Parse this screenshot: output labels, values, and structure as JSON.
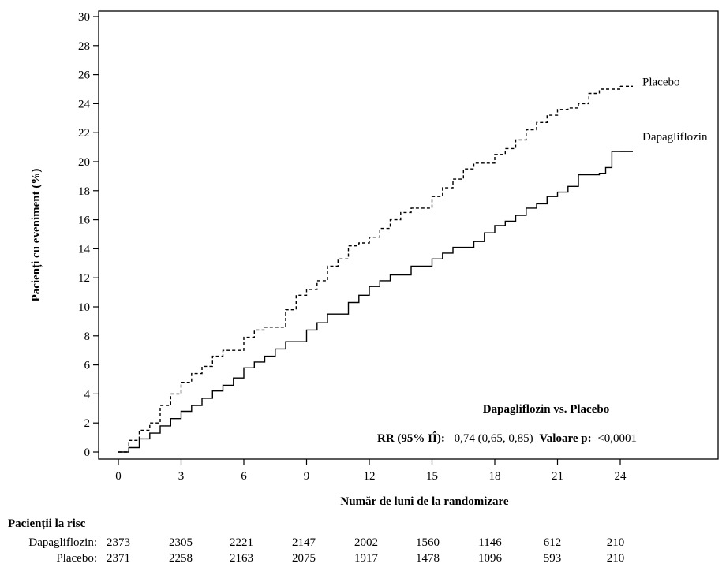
{
  "chart_data": {
    "type": "line",
    "xlabel": "Număr de luni de la randomizare",
    "ylabel": "Pacienți cu eveniment (%)",
    "xlim": [
      -1,
      31
    ],
    "ylim": [
      0,
      30
    ],
    "x_ticks": [
      0,
      3,
      6,
      9,
      12,
      15,
      18,
      21,
      24
    ],
    "y_ticks": [
      0,
      2,
      4,
      6,
      8,
      10,
      12,
      14,
      16,
      18,
      20,
      22,
      24,
      26,
      28,
      30
    ],
    "grid": false,
    "series": [
      {
        "name": "Placebo",
        "style": "dashed",
        "color": "#000000",
        "points": [
          [
            0,
            0
          ],
          [
            0.5,
            0.8
          ],
          [
            1,
            1.5
          ],
          [
            1.5,
            2
          ],
          [
            2,
            3.2
          ],
          [
            2.5,
            4
          ],
          [
            3,
            4.8
          ],
          [
            3.5,
            5.4
          ],
          [
            4,
            5.9
          ],
          [
            4.5,
            6.6
          ],
          [
            5,
            7
          ],
          [
            6,
            7.9
          ],
          [
            6.5,
            8.4
          ],
          [
            7,
            8.6
          ],
          [
            8,
            9.8
          ],
          [
            8.5,
            10.8
          ],
          [
            9,
            11.2
          ],
          [
            9.5,
            11.8
          ],
          [
            10,
            12.8
          ],
          [
            10.5,
            13.3
          ],
          [
            11,
            14.2
          ],
          [
            11.5,
            14.4
          ],
          [
            12,
            14.8
          ],
          [
            12.5,
            15.4
          ],
          [
            13,
            16
          ],
          [
            13.5,
            16.5
          ],
          [
            14,
            16.8
          ],
          [
            15,
            17.6
          ],
          [
            15.5,
            18.2
          ],
          [
            16,
            18.8
          ],
          [
            16.5,
            19.5
          ],
          [
            17,
            19.9
          ],
          [
            18,
            20.5
          ],
          [
            18.5,
            20.9
          ],
          [
            19,
            21.5
          ],
          [
            19.5,
            22.2
          ],
          [
            20,
            22.7
          ],
          [
            20.5,
            23.2
          ],
          [
            21,
            23.6
          ],
          [
            21.5,
            23.7
          ],
          [
            22,
            24
          ],
          [
            22.5,
            24.7
          ],
          [
            23,
            25
          ],
          [
            24,
            25.2
          ]
        ]
      },
      {
        "name": "Dapagliflozin",
        "style": "solid",
        "color": "#000000",
        "points": [
          [
            0,
            0
          ],
          [
            0.5,
            0.3
          ],
          [
            1,
            0.9
          ],
          [
            1.5,
            1.3
          ],
          [
            2,
            1.8
          ],
          [
            2.5,
            2.3
          ],
          [
            3,
            2.8
          ],
          [
            3.5,
            3.2
          ],
          [
            4,
            3.7
          ],
          [
            4.5,
            4.2
          ],
          [
            5,
            4.6
          ],
          [
            5.5,
            5.1
          ],
          [
            6,
            5.8
          ],
          [
            6.5,
            6.2
          ],
          [
            7,
            6.6
          ],
          [
            7.5,
            7.1
          ],
          [
            8,
            7.6
          ],
          [
            9,
            8.4
          ],
          [
            9.5,
            8.9
          ],
          [
            10,
            9.5
          ],
          [
            11,
            10.3
          ],
          [
            11.5,
            10.8
          ],
          [
            12,
            11.4
          ],
          [
            12.5,
            11.8
          ],
          [
            13,
            12.2
          ],
          [
            14,
            12.8
          ],
          [
            15,
            13.3
          ],
          [
            15.5,
            13.7
          ],
          [
            16,
            14.1
          ],
          [
            17,
            14.5
          ],
          [
            17.5,
            15.1
          ],
          [
            18,
            15.6
          ],
          [
            18.5,
            15.9
          ],
          [
            19,
            16.3
          ],
          [
            19.5,
            16.8
          ],
          [
            20,
            17.1
          ],
          [
            20.5,
            17.6
          ],
          [
            21,
            17.9
          ],
          [
            21.5,
            18.3
          ],
          [
            22,
            19.1
          ],
          [
            23,
            19.2
          ],
          [
            23.3,
            19.6
          ],
          [
            23.6,
            20.7
          ],
          [
            24,
            20.7
          ]
        ]
      }
    ],
    "annotation": {
      "title": "Dapagliflozin vs. Placebo",
      "rr_label": "RR (95% IÎ):",
      "rr_value": "0,74 (0,65, 0,85)",
      "p_label": "Valoare p:",
      "p_value": "<0,0001"
    },
    "risk_table": {
      "title": "Pacienții la risc",
      "rows": [
        {
          "label": "Dapagliflozin:",
          "values": [
            "2373",
            "2305",
            "2221",
            "2147",
            "2002",
            "1560",
            "1146",
            "612",
            "210"
          ]
        },
        {
          "label": "Placebo:",
          "values": [
            "2371",
            "2258",
            "2163",
            "2075",
            "1917",
            "1478",
            "1096",
            "593",
            "210"
          ]
        }
      ]
    }
  }
}
